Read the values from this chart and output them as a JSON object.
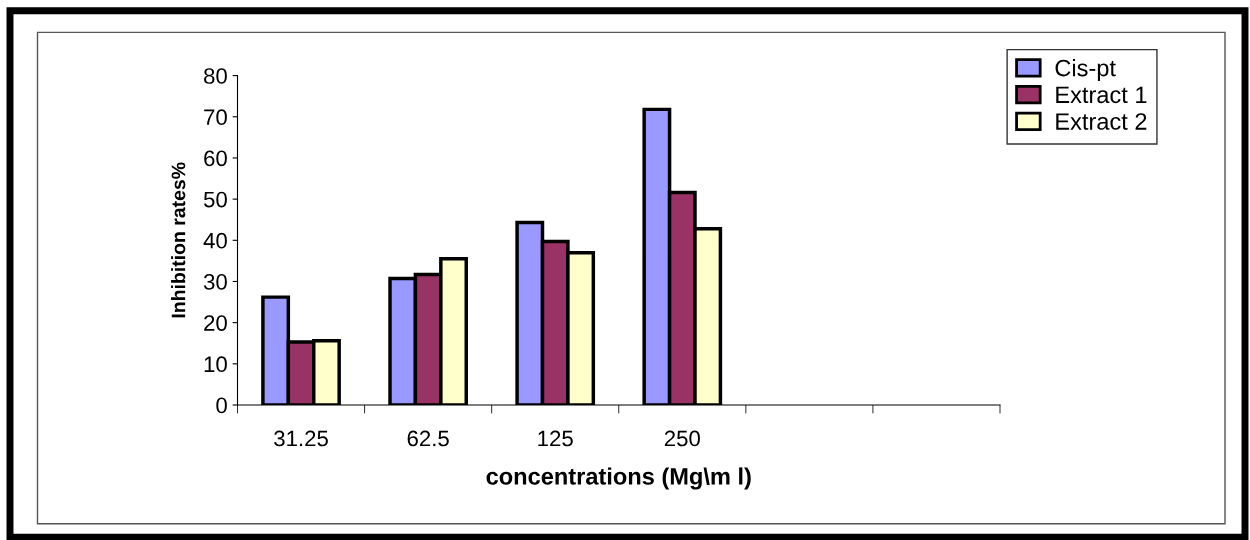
{
  "chart_data": {
    "type": "bar",
    "xlabel": "concentrations (Mg\\m l)",
    "ylabel": "Inhibition rates%",
    "categories": [
      "31.25",
      "62.5",
      "125",
      "250",
      null,
      null
    ],
    "series": [
      {
        "name": "Cis-pt",
        "color": "#9999ff",
        "values": [
          26.2,
          30.7,
          44.3,
          71.8,
          null,
          null
        ]
      },
      {
        "name": "Extract 1",
        "color": "#993366",
        "values": [
          15.3,
          31.7,
          39.7,
          51.6,
          null,
          null
        ]
      },
      {
        "name": "Extract 2",
        "color": "#ffffcc",
        "values": [
          15.6,
          35.5,
          37,
          42.8,
          null,
          null
        ]
      }
    ],
    "ylim": [
      0,
      80
    ],
    "yticks": [
      0,
      10,
      20,
      30,
      40,
      50,
      60,
      70,
      80
    ],
    "grid": false,
    "legend": "top right"
  }
}
